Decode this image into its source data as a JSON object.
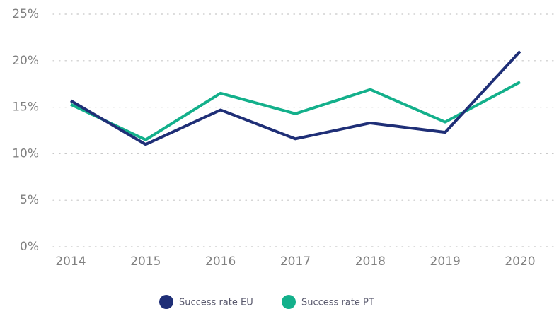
{
  "chart_data": {
    "type": "line",
    "categories": [
      "2014",
      "2015",
      "2016",
      "2017",
      "2018",
      "2019",
      "2020"
    ],
    "series": [
      {
        "name": "Success rate EU",
        "color": "#1f2f77",
        "values": [
          15.7,
          11.0,
          14.7,
          11.6,
          13.3,
          12.3,
          21.0
        ]
      },
      {
        "name": "Success rate PT",
        "color": "#13b08b",
        "values": [
          15.3,
          11.5,
          16.5,
          14.3,
          16.9,
          13.4,
          17.7
        ]
      }
    ],
    "ylim": [
      0,
      25
    ],
    "yticks": [
      {
        "value": 0,
        "label": "0%"
      },
      {
        "value": 5,
        "label": "5%"
      },
      {
        "value": 10,
        "label": "10%"
      },
      {
        "value": 15,
        "label": "15%"
      },
      {
        "value": 20,
        "label": "20%"
      },
      {
        "value": 25,
        "label": "25%"
      }
    ],
    "grid": true,
    "legend": "bottom"
  }
}
